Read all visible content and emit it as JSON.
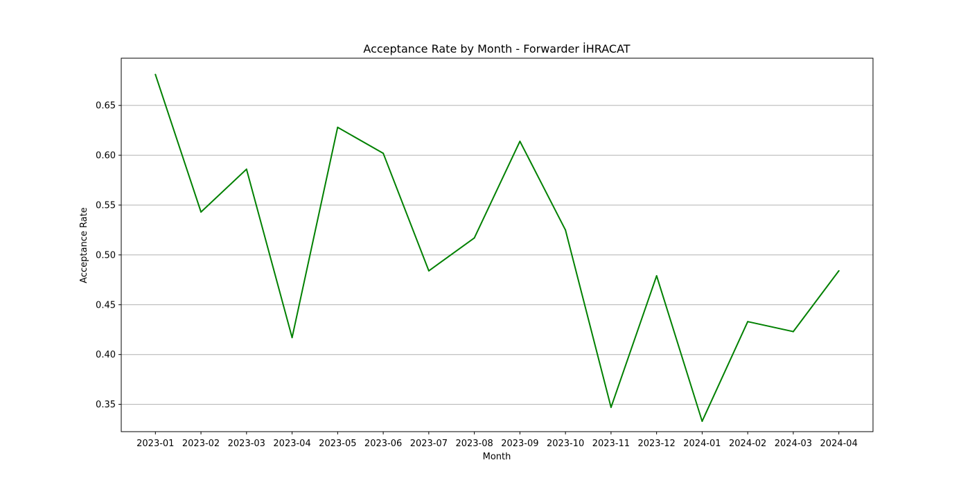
{
  "chart_data": {
    "type": "line",
    "title": "Acceptance Rate by Month - Forwarder İHRACAT",
    "xlabel": "Month",
    "ylabel": "Acceptance Rate",
    "categories": [
      "2023-01",
      "2023-02",
      "2023-03",
      "2023-04",
      "2023-05",
      "2023-06",
      "2023-07",
      "2023-08",
      "2023-09",
      "2023-10",
      "2023-11",
      "2023-12",
      "2024-01",
      "2024-02",
      "2024-03",
      "2024-04"
    ],
    "series": [
      {
        "values": [
          0.681,
          0.543,
          0.586,
          0.417,
          0.628,
          0.602,
          0.484,
          0.517,
          0.614,
          0.525,
          0.347,
          0.479,
          0.333,
          0.433,
          0.423,
          0.484
        ],
        "color": "#008000"
      }
    ],
    "ylim": [
      0.3226,
      0.6974
    ],
    "yticks": [
      "0.35",
      "0.40",
      "0.45",
      "0.50",
      "0.55",
      "0.60",
      "0.65"
    ],
    "grid": "horizontal",
    "legend": "none"
  }
}
